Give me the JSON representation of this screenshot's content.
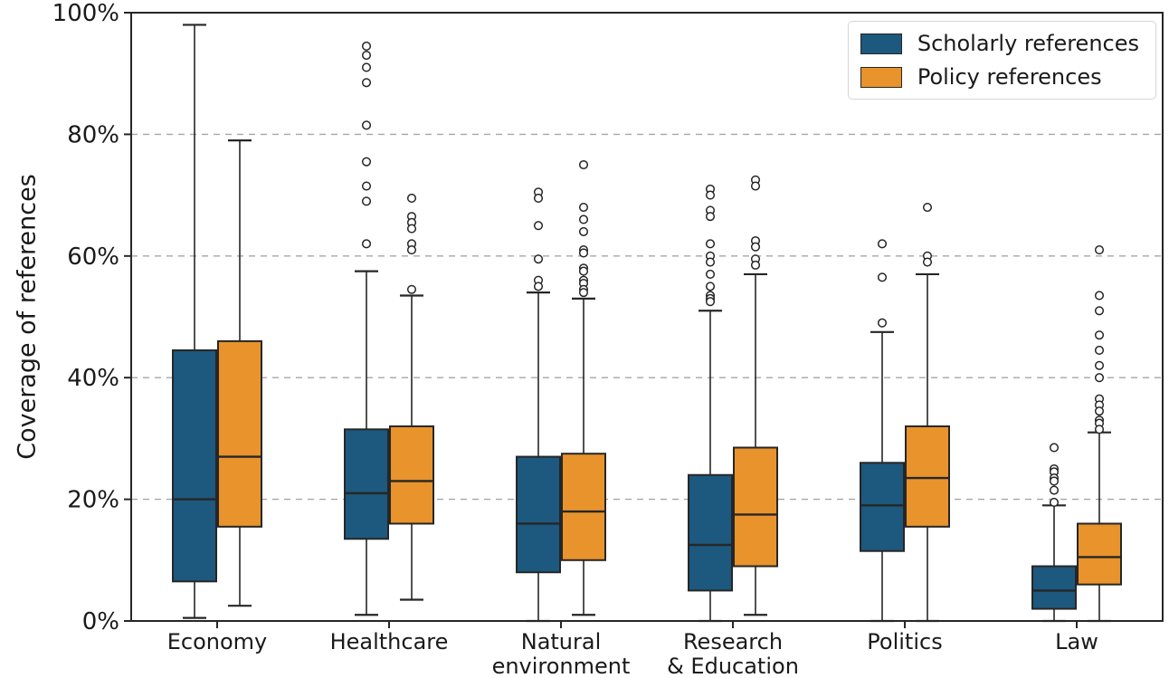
{
  "figure": {
    "background": "#ffffff"
  },
  "chart_data": {
    "type": "boxplot",
    "title": "",
    "xlabel": "",
    "ylabel": "Coverage of references",
    "ylim": [
      0,
      100
    ],
    "yticks": [
      0,
      20,
      40,
      60,
      80,
      100
    ],
    "ytick_labels": [
      "0%",
      "20%",
      "40%",
      "60%",
      "80%",
      "100%"
    ],
    "grid": "horizontal dashed gridlines at 20%, 40%, 60%, 80%",
    "legend_position": "upper right",
    "categories": [
      "Economy",
      "Healthcare",
      "Natural\nenvironment",
      "Research\n& Education",
      "Politics",
      "Law"
    ],
    "styles": {
      "edge_color": "#262626",
      "spine_color": "#262626",
      "grid_color": "#a6a6a6",
      "text_color": "#1a1a1a",
      "outlier_fill": "#ffffff"
    },
    "series": [
      {
        "name": "Scholarly references",
        "color": "#1d587e",
        "boxes": [
          {
            "low": 0.5,
            "q1": 6.5,
            "median": 20,
            "q3": 44.5,
            "high": 98,
            "outliers": []
          },
          {
            "low": 1,
            "q1": 13.5,
            "median": 21,
            "q3": 31.5,
            "high": 57.5,
            "outliers": [
              94.5,
              93,
              91,
              88.5,
              81.5,
              75.5,
              71.5,
              69,
              62
            ]
          },
          {
            "low": 0,
            "q1": 8,
            "median": 16,
            "q3": 27,
            "high": 54,
            "outliers": [
              70.5,
              69.5,
              65,
              59.5,
              56,
              55
            ]
          },
          {
            "low": 0,
            "q1": 5,
            "median": 12.5,
            "q3": 24,
            "high": 51,
            "outliers": [
              71,
              70,
              67.5,
              66.5,
              62,
              60,
              59,
              57,
              55,
              53.5,
              53,
              52.5
            ]
          },
          {
            "low": 0,
            "q1": 11.5,
            "median": 19,
            "q3": 26,
            "high": 47.5,
            "outliers": [
              62,
              56.5,
              49
            ]
          },
          {
            "low": 0,
            "q1": 2,
            "median": 5,
            "q3": 9,
            "high": 19,
            "outliers": [
              28.5,
              25,
              24.5,
              23.5,
              23,
              21.5,
              19.5
            ]
          }
        ]
      },
      {
        "name": "Policy references",
        "color": "#e8932c",
        "boxes": [
          {
            "low": 2.5,
            "q1": 15.5,
            "median": 27,
            "q3": 46,
            "high": 79,
            "outliers": []
          },
          {
            "low": 3.5,
            "q1": 16,
            "median": 23,
            "q3": 32,
            "high": 53.5,
            "outliers": [
              69.5,
              66.5,
              65.5,
              64.5,
              62,
              61,
              54.5
            ]
          },
          {
            "low": 1,
            "q1": 10,
            "median": 18,
            "q3": 27.5,
            "high": 53,
            "outliers": [
              75,
              68,
              66,
              64,
              61,
              60.5,
              58,
              57.5,
              56,
              55.5,
              54.5,
              54
            ]
          },
          {
            "low": 1,
            "q1": 9,
            "median": 17.5,
            "q3": 28.5,
            "high": 57,
            "outliers": [
              72.5,
              71.5,
              62.5,
              61.5,
              59.5,
              58.5
            ]
          },
          {
            "low": 0,
            "q1": 15.5,
            "median": 23.5,
            "q3": 32,
            "high": 57,
            "outliers": [
              68,
              60,
              59
            ]
          },
          {
            "low": 0,
            "q1": 6,
            "median": 10.5,
            "q3": 16,
            "high": 31,
            "outliers": [
              61,
              53.5,
              51,
              47,
              44.5,
              42,
              40,
              36.5,
              35.5,
              34.5,
              33,
              32.5,
              31.5
            ]
          }
        ]
      }
    ]
  }
}
